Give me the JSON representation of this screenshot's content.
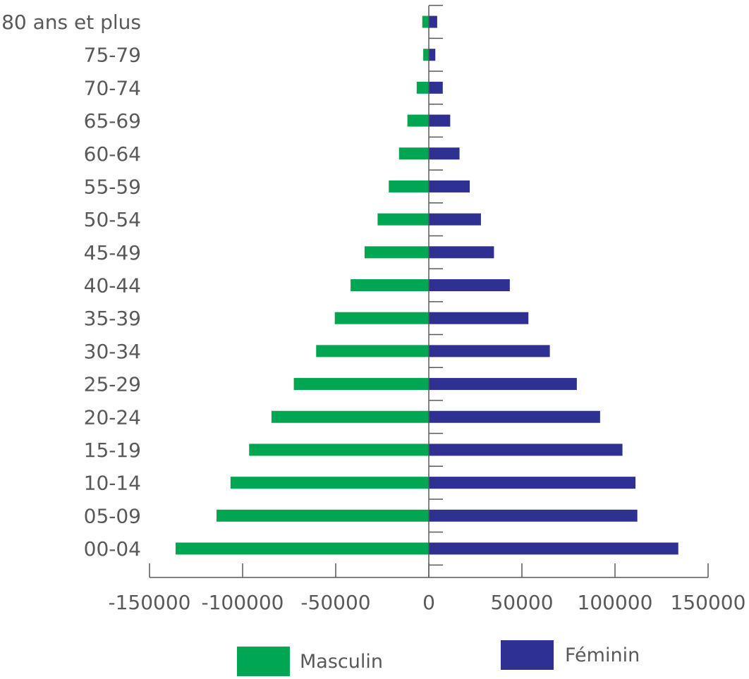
{
  "chart_data": {
    "type": "bar",
    "orientation": "horizontal",
    "subtype": "population-pyramid",
    "categories": [
      "00-04",
      "05-09",
      "10-14",
      "15-19",
      "20-24",
      "25-29",
      "30-34",
      "35-39",
      "40-44",
      "45-49",
      "50-54",
      "55-59",
      "60-64",
      "65-69",
      "70-74",
      "75-79",
      "80 ans et plus"
    ],
    "series": [
      {
        "name": "Masculin",
        "color": "#00a651",
        "values": [
          -136000,
          -114000,
          -106500,
          -96500,
          -84500,
          -72500,
          -60500,
          -50500,
          -42000,
          -34500,
          -27500,
          -21500,
          -16000,
          -11500,
          -6500,
          -3000,
          -3500
        ]
      },
      {
        "name": "Féminin",
        "color": "#2e3192",
        "values": [
          134000,
          112000,
          111000,
          104000,
          92000,
          79500,
          65000,
          53500,
          43500,
          35000,
          28000,
          22000,
          16500,
          11500,
          7500,
          3500,
          4500
        ]
      }
    ],
    "xlim": [
      -150000,
      150000
    ],
    "xticks": [
      "-150000",
      "-100000",
      "-50000",
      "0",
      "50000",
      "100000",
      "150000"
    ],
    "title": "",
    "xlabel": "",
    "ylabel": "",
    "legend_position": "bottom",
    "grid": false
  },
  "legend": {
    "male": "Masculin",
    "female": "Féminin"
  }
}
